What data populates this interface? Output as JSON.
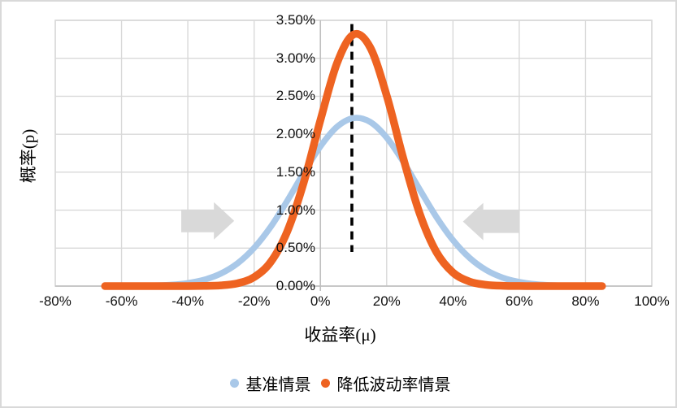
{
  "figure": {
    "background": "#FFFFFF",
    "border_color": "#D9D9D9",
    "grid_color": "#D9D9D9",
    "axis_color": "#BFBFBF"
  },
  "x_axis": {
    "title": "收益率(μ)",
    "tick_labels": [
      "-80%",
      "-60%",
      "-40%",
      "-20%",
      "0%",
      "20%",
      "40%",
      "60%",
      "80%",
      "100%"
    ],
    "tick_values": [
      -0.8,
      -0.6,
      -0.4,
      -0.2,
      0.0,
      0.2,
      0.4,
      0.6,
      0.8,
      1.0
    ]
  },
  "y_axis": {
    "title": "概率(p)",
    "tick_labels": [
      "3.50%",
      "3.00%",
      "2.50%",
      "2.00%",
      "1.50%",
      "1.00%",
      "0.50%",
      "0.00%"
    ],
    "tick_values": [
      3.5,
      3.0,
      2.5,
      2.0,
      1.5,
      1.0,
      0.5,
      0.0
    ]
  },
  "legend": {
    "items": [
      {
        "label": "基准情景",
        "color": "#A9C8E8"
      },
      {
        "label": "降低波动率情景",
        "color": "#EE6321"
      }
    ]
  },
  "chart_data": {
    "type": "line",
    "title": "",
    "xlabel": "收益率(μ)",
    "ylabel": "概率(p)",
    "xlim": [
      -0.8,
      1.0
    ],
    "ylim": [
      0,
      3.5
    ],
    "grid": true,
    "legend_position": "bottom",
    "x": [
      -0.65,
      -0.6,
      -0.55,
      -0.5,
      -0.45,
      -0.4,
      -0.35,
      -0.3,
      -0.25,
      -0.2,
      -0.15,
      -0.1,
      -0.05,
      0.0,
      0.05,
      0.1,
      0.15,
      0.2,
      0.25,
      0.3,
      0.35,
      0.4,
      0.45,
      0.5,
      0.55,
      0.6,
      0.65,
      0.7,
      0.75,
      0.8,
      0.85
    ],
    "series": [
      {
        "name": "基准情景",
        "color": "#A9C8E8",
        "stroke_width": 7.5,
        "mean": 0.11,
        "std_dev": 0.18,
        "peak_percent": 2.22,
        "values": [
          0.0003,
          0.0009,
          0.0027,
          0.0071,
          0.0175,
          0.0401,
          0.0847,
          0.1655,
          0.3,
          0.5031,
          0.7808,
          1.1221,
          1.4929,
          1.8387,
          2.0964,
          2.2127,
          2.1621,
          1.9558,
          1.6377,
          1.2696,
          0.9111,
          0.6053,
          0.3723,
          0.2118,
          0.1115,
          0.0545,
          0.0246,
          0.0103,
          0.004,
          0.0014,
          0.0005
        ]
      },
      {
        "name": "降低波动率情景",
        "color": "#EE6321",
        "stroke_width": 9.5,
        "mean": 0.11,
        "std_dev": 0.12,
        "peak_percent": 3.32,
        "values": [
          0.0,
          0.0,
          0.0,
          0.0,
          0.0001,
          0.0004,
          0.0021,
          0.0097,
          0.0369,
          0.1181,
          0.3177,
          0.7186,
          1.3666,
          2.1839,
          2.9337,
          3.3127,
          3.1446,
          2.5093,
          1.6832,
          0.9491,
          0.4499,
          0.1791,
          0.0601,
          0.0169,
          0.004,
          0.0008,
          0.0001,
          0.0,
          0.0,
          0.0,
          0.0
        ]
      }
    ],
    "annotations": {
      "mean_dashed_line": {
        "x": 0.095,
        "y_from_percent": 0.45,
        "y_to_percent": 3.45,
        "color": "#000000",
        "style": "dashed"
      },
      "arrows": [
        {
          "direction": "right",
          "tail_x": -0.42,
          "tip_x": -0.26,
          "y_percent": 0.86,
          "color": "#D9D9D9"
        },
        {
          "direction": "left",
          "tail_x": 0.6,
          "tip_x": 0.43,
          "y_percent": 0.85,
          "color": "#D9D9D9"
        }
      ]
    }
  }
}
